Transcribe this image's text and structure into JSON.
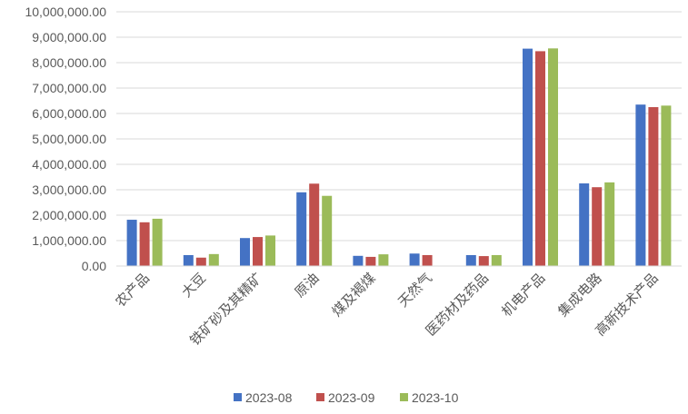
{
  "chart_data": {
    "type": "bar",
    "title": "",
    "xlabel": "",
    "ylabel": "",
    "ylim": [
      0,
      10000000
    ],
    "yticks": [
      0,
      1000000,
      2000000,
      3000000,
      4000000,
      5000000,
      6000000,
      7000000,
      8000000,
      9000000,
      10000000
    ],
    "ytick_labels": [
      "0.00",
      "1,000,000.00",
      "2,000,000.00",
      "3,000,000.00",
      "4,000,000.00",
      "5,000,000.00",
      "6,000,000.00",
      "7,000,000.00",
      "8,000,000.00",
      "9,000,000.00",
      "10,000,000.00"
    ],
    "grid": true,
    "legend_position": "bottom",
    "categories": [
      "农产品",
      "大豆",
      "铁矿砂及其精矿",
      "原油",
      "煤及褐煤",
      "天然气",
      "医药材及药品",
      "机电产品",
      "集成电路",
      "高新技术产品"
    ],
    "series": [
      {
        "name": "2023-08",
        "color": "#4472C4",
        "values": [
          1820000,
          430000,
          1100000,
          2900000,
          400000,
          490000,
          430000,
          8550000,
          3250000,
          6350000
        ]
      },
      {
        "name": "2023-09",
        "color": "#C0504D",
        "values": [
          1720000,
          330000,
          1140000,
          3240000,
          360000,
          430000,
          390000,
          8450000,
          3100000,
          6250000
        ]
      },
      {
        "name": "2023-10",
        "color": "#9BBB59",
        "values": [
          1860000,
          470000,
          1200000,
          2760000,
          460000,
          0,
          430000,
          8560000,
          3290000,
          6310000
        ]
      }
    ]
  }
}
